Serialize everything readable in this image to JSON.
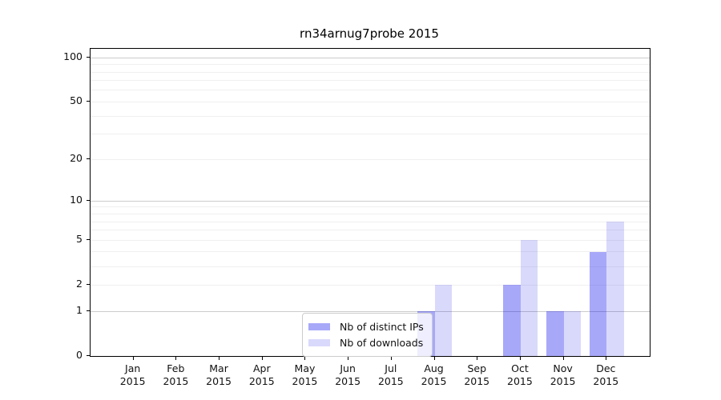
{
  "chart_data": {
    "type": "bar",
    "title": "rn34arnug7probe 2015",
    "categories": [
      "Jan",
      "Feb",
      "Mar",
      "Apr",
      "May",
      "Jun",
      "Jul",
      "Aug",
      "Sep",
      "Oct",
      "Nov",
      "Dec"
    ],
    "x_tick_second_line": "2015",
    "series": [
      {
        "name": "Nb of distinct IPs",
        "color": "rgba(0,0,238,0.34)",
        "values": [
          0,
          0,
          0,
          0,
          0,
          0,
          0,
          1,
          0,
          2,
          1,
          4
        ]
      },
      {
        "name": "Nb of downloads",
        "color": "rgba(0,0,238,0.15)",
        "values": [
          0,
          0,
          0,
          0,
          0,
          0,
          0,
          2,
          0,
          5,
          1,
          7
        ]
      }
    ],
    "xlabel": "",
    "ylabel": "",
    "y_scale": "log1p",
    "ylim": [
      0,
      115
    ],
    "y_tick_values": [
      0,
      1,
      2,
      5,
      10,
      20,
      50,
      100
    ],
    "y_major_gridlines": [
      1,
      10,
      100
    ],
    "y_minor_gridlines": [
      2,
      3,
      4,
      5,
      6,
      7,
      8,
      9,
      20,
      30,
      40,
      50,
      60,
      70,
      80,
      90
    ],
    "grid": "on",
    "legend_position": "lower center"
  },
  "colors": {
    "figure_background": "#ffffff",
    "spine": "#000000",
    "major_grid": "#cccccc",
    "minor_grid": "#f0f0f0",
    "tick_text": "#111111",
    "bar_distinct_ips": "rgba(0,0,238,0.34)",
    "bar_downloads": "rgba(0,0,238,0.15)"
  }
}
